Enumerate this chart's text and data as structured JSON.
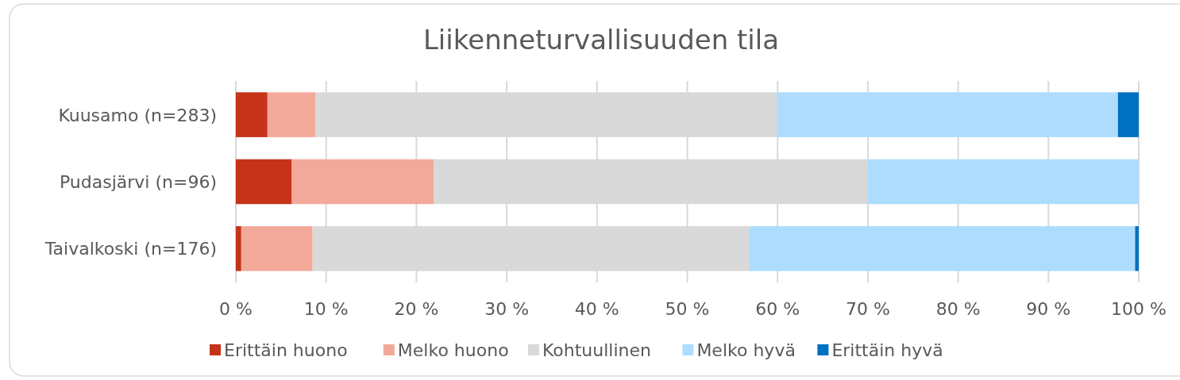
{
  "chart_data": {
    "type": "bar",
    "orientation": "horizontal",
    "stacked": true,
    "title": "Liikenneturvallisuuden tila",
    "categories": [
      "Kuusamo (n=283)",
      "Pudasjärvi (n=96)",
      "Taivalkoski (n=176)"
    ],
    "series": [
      {
        "name": "Erittäin huono",
        "color": "#c4331a",
        "values": [
          3.5,
          6.2,
          0.6
        ]
      },
      {
        "name": "Melko huono",
        "color": "#f3a99a",
        "values": [
          5.3,
          15.7,
          7.9
        ]
      },
      {
        "name": "Kohtuullinen",
        "color": "#d9d9d9",
        "values": [
          51.1,
          48.1,
          48.4
        ]
      },
      {
        "name": "Melko hyvä",
        "color": "#addcfe",
        "values": [
          37.8,
          30.0,
          42.7
        ]
      },
      {
        "name": "Erittäin hyvä",
        "color": "#0070c0",
        "values": [
          2.3,
          0,
          0.4
        ]
      }
    ],
    "xlim": [
      0,
      100
    ],
    "xticks": [
      {
        "value": 0,
        "label": "0 %"
      },
      {
        "value": 10,
        "label": "10 %"
      },
      {
        "value": 20,
        "label": "20 %"
      },
      {
        "value": 30,
        "label": "30 %"
      },
      {
        "value": 40,
        "label": "40 %"
      },
      {
        "value": 50,
        "label": "50 %"
      },
      {
        "value": 60,
        "label": "60 %"
      },
      {
        "value": 70,
        "label": "70 %"
      },
      {
        "value": 80,
        "label": "80 %"
      },
      {
        "value": 90,
        "label": "90 %"
      },
      {
        "value": 100,
        "label": "100 %"
      }
    ],
    "grid": "x",
    "legend": "bottom"
  }
}
